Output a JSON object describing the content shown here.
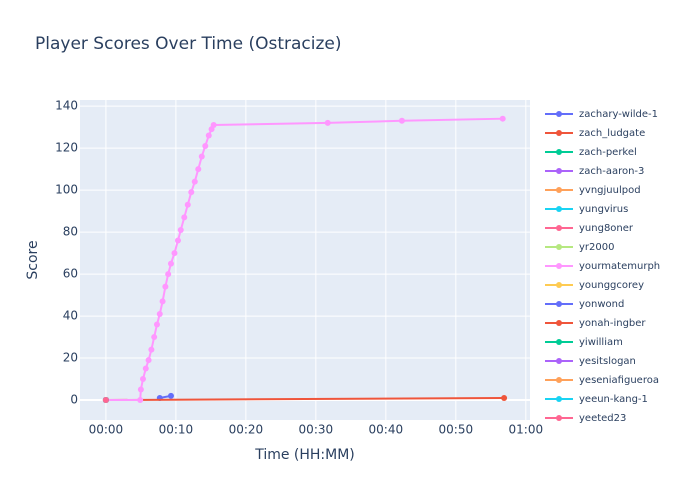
{
  "chart_data": {
    "type": "line",
    "title": "Player Scores Over Time (Ostracize)",
    "x_label": "Time (HH:MM)",
    "y_label": "Score",
    "xlim": [
      -3.7,
      60.6
    ],
    "ylim": [
      -9.5,
      142.9
    ],
    "xticks": [
      {
        "value": 0,
        "label": "00:00"
      },
      {
        "value": 10,
        "label": "00:10"
      },
      {
        "value": 20,
        "label": "00:20"
      },
      {
        "value": 30,
        "label": "00:30"
      },
      {
        "value": 40,
        "label": "00:40"
      },
      {
        "value": 50,
        "label": "00:50"
      },
      {
        "value": 60,
        "label": "01:00"
      }
    ],
    "yticks": [
      0,
      20,
      40,
      60,
      80,
      100,
      120,
      140
    ],
    "grid": true,
    "legend": "right",
    "series": [
      {
        "name": "zachary-wilde-1",
        "color": "#636EFA",
        "x": [
          7.7,
          9.3
        ],
        "values": [
          1,
          2
        ]
      },
      {
        "name": "zach_ludgate",
        "color": "#EF553B",
        "x": [
          0,
          56.9
        ],
        "values": [
          0,
          1
        ]
      },
      {
        "name": "zach-perkel",
        "color": "#00CC96",
        "x": [
          0
        ],
        "values": [
          0
        ]
      },
      {
        "name": "zach-aaron-3",
        "color": "#AB63FA",
        "x": [
          0
        ],
        "values": [
          0
        ]
      },
      {
        "name": "yvngjuulpod",
        "color": "#FFA15A",
        "x": [
          0
        ],
        "values": [
          0
        ]
      },
      {
        "name": "yungvirus",
        "color": "#19D3F3",
        "x": [
          0
        ],
        "values": [
          0
        ]
      },
      {
        "name": "yung8oner",
        "color": "#FF6692",
        "x": [
          0
        ],
        "values": [
          0
        ]
      },
      {
        "name": "yr2000",
        "color": "#B6E880",
        "x": [
          0
        ],
        "values": [
          0
        ]
      },
      {
        "name": "yourmatemurph",
        "color": "#FF97FF",
        "x": [
          0,
          4.9,
          5.0,
          5.3,
          5.7,
          6.1,
          6.5,
          6.9,
          7.3,
          7.7,
          8.1,
          8.5,
          8.9,
          9.3,
          9.8,
          10.3,
          10.7,
          11.2,
          11.7,
          12.2,
          12.7,
          13.2,
          13.7,
          14.2,
          14.7,
          15.1,
          15.4,
          31.7,
          42.3,
          56.7
        ],
        "values": [
          0,
          0,
          5,
          10,
          15,
          19,
          24,
          30,
          36,
          41,
          47,
          54,
          60,
          65,
          70,
          76,
          81,
          87,
          93,
          99,
          104,
          110,
          116,
          121,
          126,
          129,
          131,
          132,
          133,
          134
        ]
      },
      {
        "name": "younggcorey",
        "color": "#FECB52",
        "x": [
          0
        ],
        "values": [
          0
        ]
      },
      {
        "name": "yonwond",
        "color": "#636EFA",
        "x": [
          0
        ],
        "values": [
          0
        ]
      },
      {
        "name": "yonah-ingber",
        "color": "#EF553B",
        "x": [
          0
        ],
        "values": [
          0
        ]
      },
      {
        "name": "yiwilliam",
        "color": "#00CC96",
        "x": [
          0
        ],
        "values": [
          0
        ]
      },
      {
        "name": "yesitslogan",
        "color": "#AB63FA",
        "x": [
          0
        ],
        "values": [
          0
        ]
      },
      {
        "name": "yeseniafigueroa",
        "color": "#FFA15A",
        "x": [
          0
        ],
        "values": [
          0
        ]
      },
      {
        "name": "yeeun-kang-1",
        "color": "#19D3F3",
        "x": [
          0
        ],
        "values": [
          0
        ]
      },
      {
        "name": "yeeted23",
        "color": "#FF6692",
        "x": [
          0
        ],
        "values": [
          0
        ]
      }
    ]
  }
}
